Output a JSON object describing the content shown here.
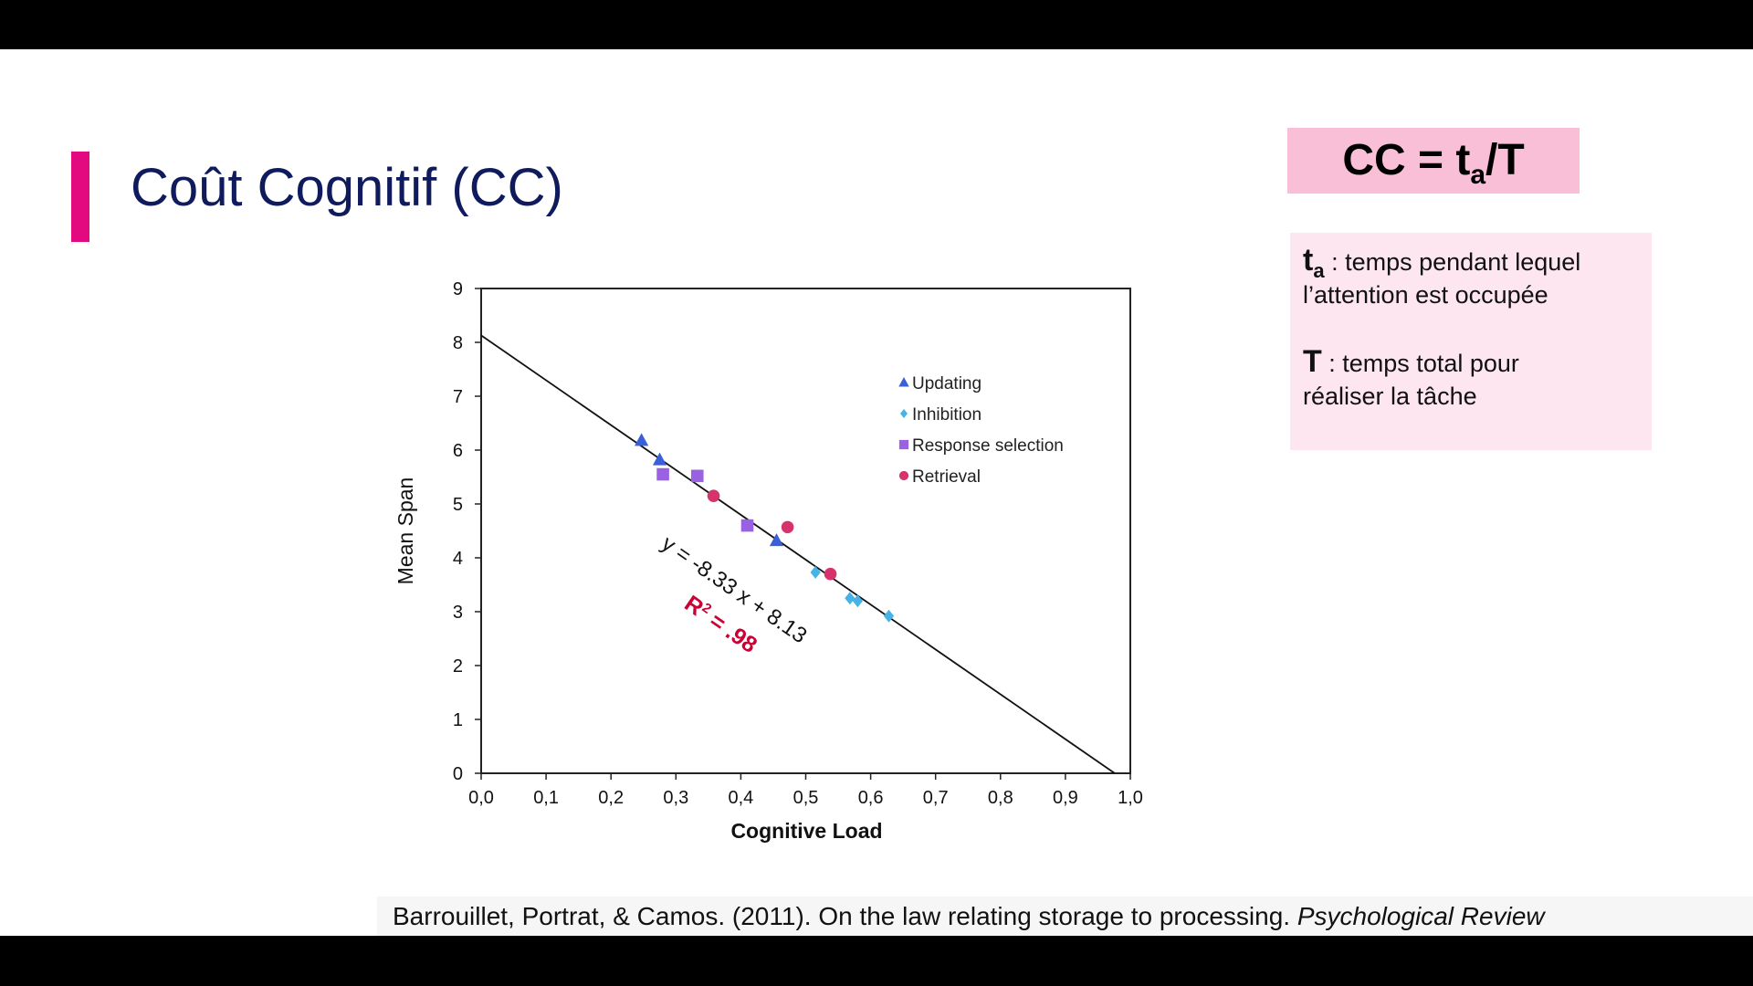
{
  "slide": {
    "title": "Coût Cognitif (CC)",
    "accent_color": "#e3097f",
    "title_color": "#0f1b5c",
    "formula": {
      "lhs": "CC = t",
      "sub": "a",
      "rhs": "/T"
    },
    "definitions": {
      "ta": {
        "symbol": "t",
        "sub": "a",
        "text": " : temps pendant lequel",
        "text2": "l’attention est occupée"
      },
      "T": {
        "symbol": "T",
        "text": " : temps total pour",
        "text2": "réaliser la tâche"
      }
    },
    "citation": {
      "text": "Barrouillet, Portrat, & Camos. (2011). On the law relating storage to processing. ",
      "journal": "Psychological Review"
    }
  },
  "chart_data": {
    "type": "scatter",
    "title": "",
    "xlabel": "Cognitive Load",
    "ylabel": "Mean Span",
    "xlim": [
      0,
      1
    ],
    "ylim": [
      0,
      9
    ],
    "xticks": [
      0,
      0.1,
      0.2,
      0.3,
      0.4,
      0.5,
      0.6,
      0.7,
      0.8,
      0.9,
      1.0
    ],
    "xtick_labels": [
      "0,0",
      "0,1",
      "0,2",
      "0,3",
      "0,4",
      "0,5",
      "0,6",
      "0,7",
      "0,8",
      "0,9",
      "1,0"
    ],
    "yticks": [
      0,
      1,
      2,
      3,
      4,
      5,
      6,
      7,
      8,
      9
    ],
    "ytick_labels": [
      "0",
      "1",
      "2",
      "3",
      "4",
      "5",
      "6",
      "7",
      "8",
      "9"
    ],
    "grid": false,
    "legend_position": "top-right",
    "regression": {
      "slope": -8.33,
      "intercept": 8.13,
      "equation": "y = -8.33 x + 8.13",
      "r2_label": "R",
      "r2_sup": "2",
      "r2_value": " = .98"
    },
    "series": [
      {
        "name": "Updating",
        "marker": "triangle",
        "color": "#3a5fd9",
        "points": [
          [
            0.247,
            6.18
          ],
          [
            0.275,
            5.82
          ],
          [
            0.455,
            4.32
          ]
        ]
      },
      {
        "name": "Inhibition",
        "marker": "diamond",
        "color": "#45b3e6",
        "points": [
          [
            0.515,
            3.73
          ],
          [
            0.568,
            3.25
          ],
          [
            0.58,
            3.2
          ],
          [
            0.628,
            2.92
          ]
        ]
      },
      {
        "name": "Response selection",
        "marker": "square",
        "color": "#9a62e3",
        "points": [
          [
            0.28,
            5.55
          ],
          [
            0.333,
            5.52
          ],
          [
            0.41,
            4.6
          ]
        ]
      },
      {
        "name": "Retrieval",
        "marker": "circle",
        "color": "#d6336c",
        "points": [
          [
            0.358,
            5.15
          ],
          [
            0.472,
            4.57
          ],
          [
            0.538,
            3.7
          ]
        ]
      }
    ]
  }
}
